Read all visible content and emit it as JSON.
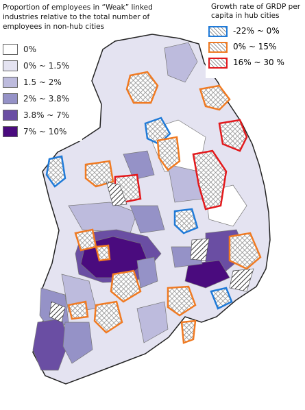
{
  "left_legend": {
    "title": "Proportion of employees in “Weak” linked industries relative to the total number of employees in non-hub cities",
    "items": [
      {
        "label": "0%",
        "color": "#ffffff"
      },
      {
        "label": "0% ~ 1.5%",
        "color": "#e4e3f1"
      },
      {
        "label": "1.5 ~ 2%",
        "color": "#bdbbdd"
      },
      {
        "label": "2% ~ 3.8%",
        "color": "#9592c7"
      },
      {
        "label": "3.8% ~ 7%",
        "color": "#6a4ea3"
      },
      {
        "label": "7% ~ 10%",
        "color": "#4a0b7e"
      }
    ]
  },
  "right_legend": {
    "title": "Growth rate of GRDP per capita in hub cities",
    "items": [
      {
        "label": "-22% ~ 0%",
        "color": "#1f7ad8"
      },
      {
        "label": "0% ~ 15%",
        "color": "#f07a22"
      },
      {
        "label": "16% ~ 30 %",
        "color": "#e3191c"
      }
    ]
  }
}
